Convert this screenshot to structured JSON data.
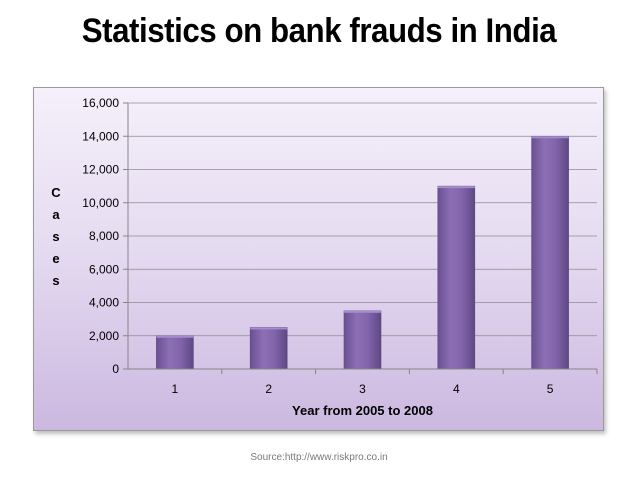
{
  "title": "Statistics on bank frauds in India",
  "source": "Source:http://www.riskpro.co.in",
  "colors": {
    "bar": "#8064a2",
    "bar_light": "#a58ccc",
    "bar_dark": "#5f4883",
    "gridline": "#8c8c8c",
    "axis": "#868686"
  },
  "chart_data": {
    "type": "bar",
    "categories": [
      "1",
      "2",
      "3",
      "4",
      "5"
    ],
    "values": [
      2000,
      2500,
      3500,
      11000,
      14000
    ],
    "xlabel": "Year from 2005 to 2008",
    "ylabel": "Cases",
    "ylim": [
      0,
      16000
    ],
    "yticks": [
      "0",
      "2,000",
      "4,000",
      "6,000",
      "8,000",
      "10,000",
      "12,000",
      "14,000",
      "16,000"
    ],
    "grid": true,
    "legend": "none"
  }
}
